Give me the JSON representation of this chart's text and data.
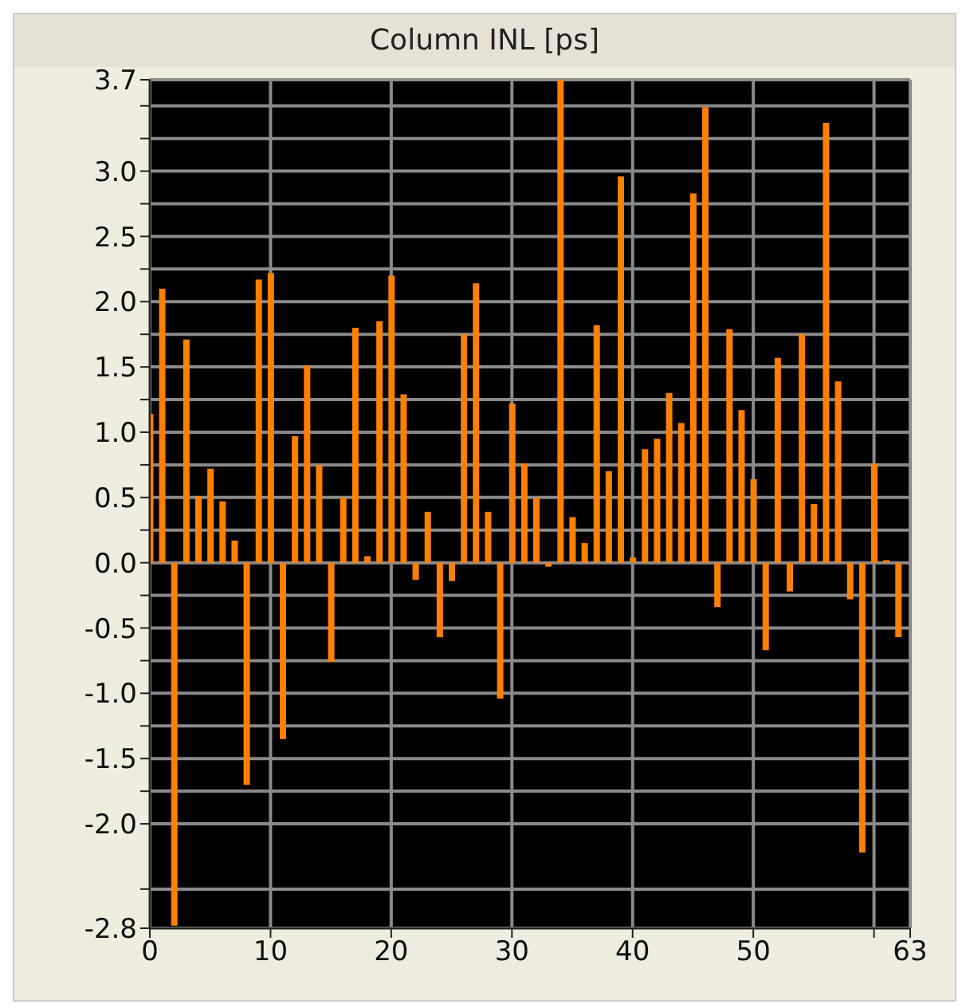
{
  "chart_data": {
    "type": "bar",
    "title": "Column INL [ps]",
    "x": [
      0,
      1,
      2,
      3,
      4,
      5,
      6,
      7,
      8,
      9,
      10,
      11,
      12,
      13,
      14,
      15,
      16,
      17,
      18,
      19,
      20,
      21,
      22,
      23,
      24,
      25,
      26,
      27,
      28,
      29,
      30,
      31,
      32,
      33,
      34,
      35,
      36,
      37,
      38,
      39,
      40,
      41,
      42,
      43,
      44,
      45,
      46,
      47,
      48,
      49,
      50,
      51,
      52,
      53,
      54,
      55,
      56,
      57,
      58,
      59,
      60,
      61,
      62
    ],
    "values": [
      1.14,
      2.1,
      -2.78,
      1.71,
      0.51,
      0.72,
      0.47,
      0.17,
      -1.7,
      2.17,
      2.22,
      -1.35,
      0.97,
      1.51,
      0.75,
      -0.76,
      0.5,
      1.8,
      0.05,
      1.85,
      2.2,
      1.29,
      -0.13,
      0.39,
      -0.57,
      -0.14,
      1.75,
      2.14,
      0.39,
      -1.04,
      1.22,
      0.76,
      0.5,
      -0.03,
      3.7,
      0.35,
      0.15,
      1.82,
      0.7,
      2.96,
      0.04,
      0.87,
      0.95,
      1.3,
      1.07,
      2.83,
      3.49,
      -0.34,
      1.79,
      1.17,
      0.64,
      -0.67,
      1.57,
      -0.22,
      1.75,
      0.45,
      3.37,
      1.39,
      -0.28,
      -2.22,
      0.76,
      0.02,
      -0.57
    ],
    "color": "#ff8000",
    "xlim": [
      0,
      63
    ],
    "xticks": [
      0,
      10,
      20,
      30,
      40,
      50,
      {
        "value": 60,
        "label": null
      },
      63
    ],
    "ylim": [
      -2.8,
      3.7
    ],
    "yticks": [
      -2.8,
      {
        "value": -2.5,
        "label": null
      },
      {
        "value": -2,
        "label": "-2.0"
      },
      {
        "value": -1.75,
        "label": null
      },
      -1.5,
      {
        "value": -1.25,
        "label": null
      },
      {
        "value": -1,
        "label": "-1.0"
      },
      {
        "value": -0.75,
        "label": null
      },
      -0.5,
      {
        "value": -0.25,
        "label": null
      },
      {
        "value": 0,
        "label": "0.0"
      },
      {
        "value": 0.25,
        "label": null
      },
      0.5,
      {
        "value": 0.75,
        "label": null
      },
      {
        "value": 1,
        "label": "1.0"
      },
      {
        "value": 1.25,
        "label": null
      },
      1.5,
      {
        "value": 1.75,
        "label": null
      },
      {
        "value": 2,
        "label": "2.0"
      },
      {
        "value": 2.25,
        "label": null
      },
      2.5,
      {
        "value": 2.75,
        "label": null
      },
      {
        "value": 3,
        "label": "3.0"
      },
      {
        "value": 3.25,
        "label": null
      },
      {
        "value": 3.5,
        "label": null
      },
      3.7
    ],
    "grid": true
  }
}
